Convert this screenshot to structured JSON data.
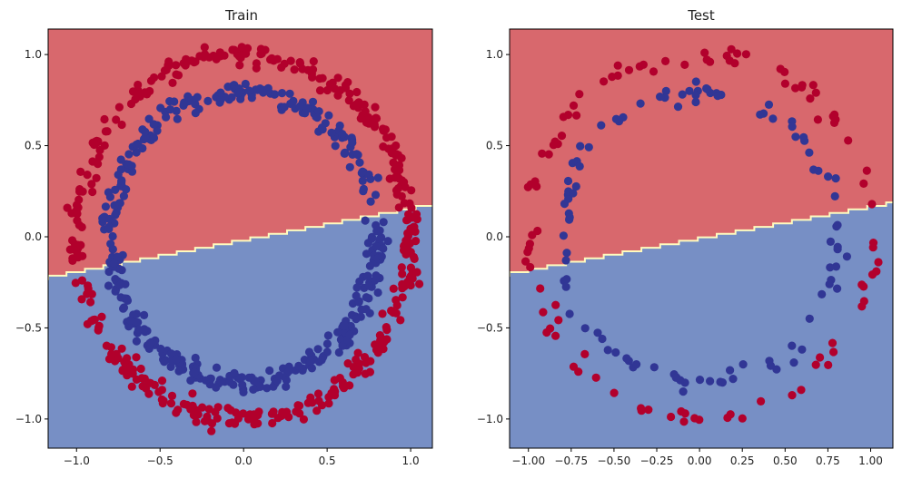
{
  "chart_data": [
    {
      "type": "scatter",
      "title": "Train",
      "xlim": [
        -1.17,
        1.13
      ],
      "ylim": [
        -1.16,
        1.14
      ],
      "xticks": [
        -1.0,
        -0.5,
        0.0,
        0.5,
        1.0
      ],
      "xtick_labels": [
        "−1.0",
        "−0.5",
        "0.0",
        "0.5",
        "1.0"
      ],
      "yticks": [
        -1.0,
        -0.5,
        0.0,
        0.5,
        1.0
      ],
      "ytick_labels": [
        "−1.0",
        "−0.5",
        "0.0",
        "0.5",
        "1.0"
      ],
      "boundary": {
        "slope": 0.174,
        "intercept": -0.003,
        "step": 0.11
      },
      "series": [
        {
          "name": "class 0 (outer circle)",
          "color": "#b2002c",
          "radius_mean": 1.0,
          "noise": 0.03,
          "n_points": 400
        },
        {
          "name": "class 1 (inner circle)",
          "color": "#313695",
          "radius_mean": 0.8,
          "noise": 0.03,
          "n_points": 400
        }
      ],
      "region_colors": {
        "above": "#d8686d",
        "below": "#778fc5",
        "edge": "#fffbbf"
      }
    },
    {
      "type": "scatter",
      "title": "Test",
      "xlim": [
        -1.11,
        1.13
      ],
      "ylim": [
        -1.16,
        1.14
      ],
      "xticks": [
        -1.0,
        -0.75,
        -0.5,
        -0.25,
        0.0,
        0.25,
        0.5,
        0.75,
        1.0
      ],
      "xtick_labels": [
        "−1.00",
        "−0.75",
        "−0.50",
        "−0.25",
        "0.00",
        "0.25",
        "0.50",
        "0.75",
        "1.00"
      ],
      "yticks": [
        -1.0,
        -0.5,
        0.0,
        0.5,
        1.0
      ],
      "ytick_labels": [
        "−1.0",
        "−0.5",
        "0.0",
        "0.5",
        "1.0"
      ],
      "boundary": {
        "slope": 0.174,
        "intercept": -0.003,
        "step": 0.11
      },
      "series": [
        {
          "name": "class 0 (outer circle)",
          "color": "#b2002c",
          "radius_mean": 1.0,
          "noise": 0.03,
          "n_points": 100
        },
        {
          "name": "class 1 (inner circle)",
          "color": "#313695",
          "radius_mean": 0.8,
          "noise": 0.03,
          "n_points": 100
        }
      ],
      "region_colors": {
        "above": "#d8686d",
        "below": "#778fc5",
        "edge": "#fffbbf"
      }
    }
  ]
}
